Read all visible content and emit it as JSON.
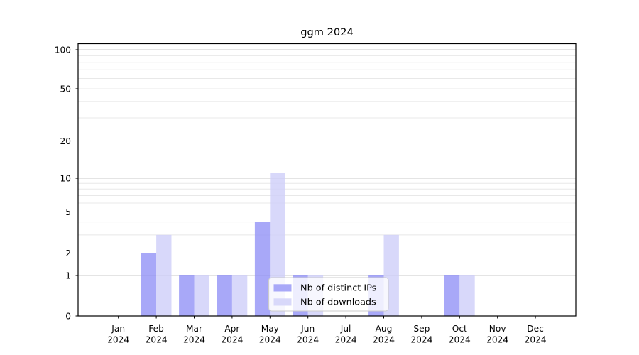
{
  "chart_data": {
    "type": "bar",
    "title": "ggm 2024",
    "categories": [
      "Jan 2024",
      "Feb 2024",
      "Mar 2024",
      "Apr 2024",
      "May 2024",
      "Jun 2024",
      "Jul 2024",
      "Aug 2024",
      "Sep 2024",
      "Oct 2024",
      "Nov 2024",
      "Dec 2024"
    ],
    "series": [
      {
        "name": "Nb of distinct IPs",
        "color": "#a8a8f8",
        "values": [
          0,
          2,
          1,
          1,
          4,
          1,
          0,
          1,
          0,
          1,
          0,
          0
        ]
      },
      {
        "name": "Nb of downloads",
        "color": "#d8d8fa",
        "values": [
          0,
          3,
          1,
          1,
          11,
          1,
          0,
          3,
          0,
          1,
          0,
          0
        ]
      }
    ],
    "yticks": [
      0,
      1,
      2,
      5,
      10,
      20,
      50,
      100
    ],
    "minor_yticks": [
      3,
      4,
      6,
      7,
      8,
      9,
      30,
      40,
      60,
      70,
      80,
      90
    ],
    "major_gridline_values": [
      1,
      10,
      100
    ],
    "yscale": "symlog",
    "ylim": [
      0,
      120
    ],
    "xlabel": "",
    "ylabel": "",
    "grid": true,
    "legend_position": "lower center",
    "colors": {
      "major_grid": "#c9c9c9",
      "minor_grid": "#e8e8e8",
      "axis": "#000000",
      "legend_border": "#cccccc",
      "legend_bg": "#ffffff"
    }
  }
}
